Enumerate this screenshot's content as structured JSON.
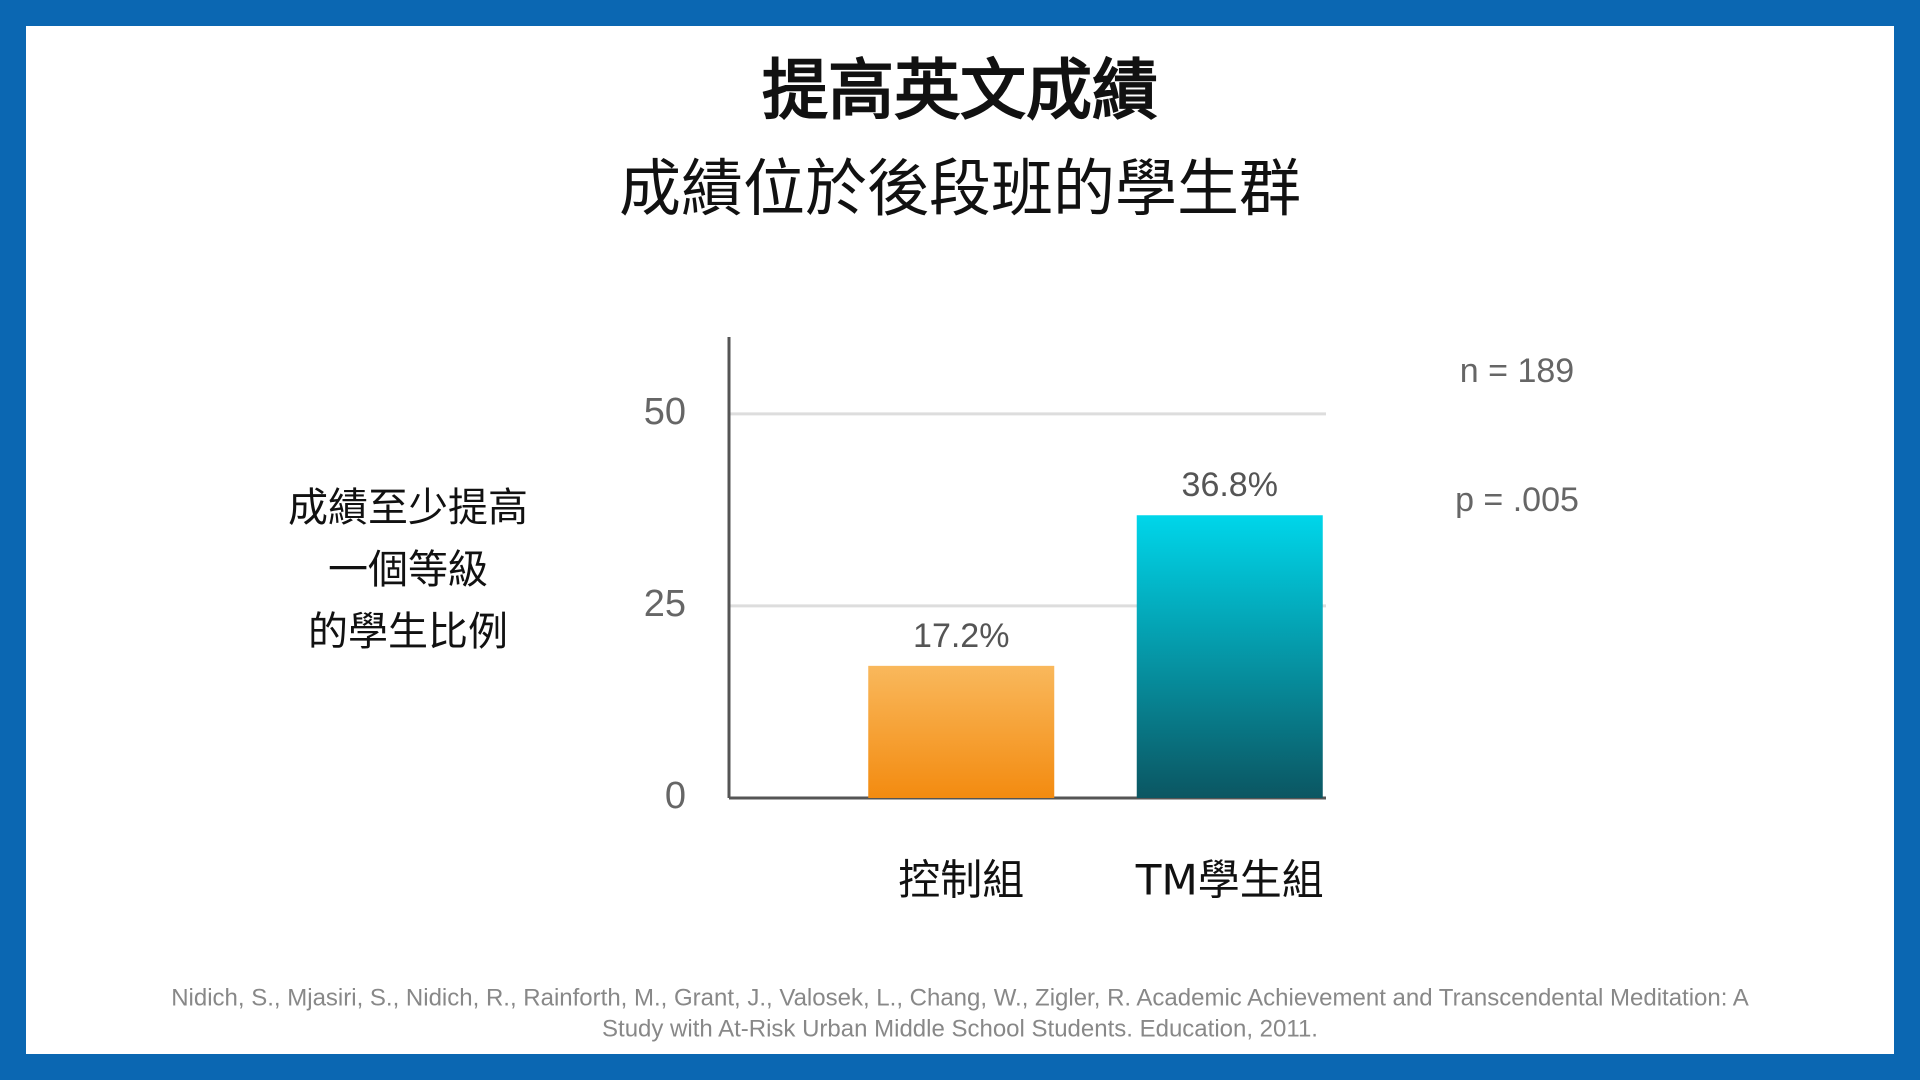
{
  "chart_data": {
    "type": "bar",
    "title": "提高英文成績",
    "subtitle": "成績位於後段班的學生群",
    "y_label": [
      "成績至少提高",
      "一個等級",
      "的學生比例"
    ],
    "categories": [
      "控制組",
      "TM學生組"
    ],
    "values": [
      17.2,
      36.8
    ],
    "value_labels": [
      "17.2%",
      "36.8%"
    ],
    "colors": [
      [
        "#f9b85c",
        "#f38b10"
      ],
      [
        "#00d6ea",
        "#0b5662"
      ]
    ],
    "ylim": [
      0,
      60
    ],
    "yticks": [
      0,
      25,
      50
    ],
    "grid": true,
    "annotations": [
      "n = 189",
      "p = .005"
    ],
    "source": [
      "Nidich, S., Mjasiri, S., Nidich, R., Rainforth, M., Grant, J., Valosek, L., Chang, W., Zigler, R.  Academic Achievement and Transcendental Meditation: A",
      "Study with At-Risk Urban Middle School Students. Education, 2011."
    ]
  }
}
